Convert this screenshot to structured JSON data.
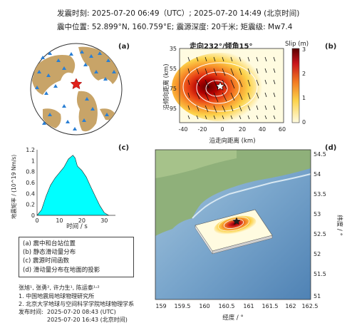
{
  "header": {
    "line1": "发震时刻: 2025-07-20 06:49（UTC）;   2025-07-20  14:49 (北京时间)",
    "line2": "震中位置: 52.899°N,  160.759°E;   震源深度: 20千米;  矩震级: Mw7.4"
  },
  "panels": {
    "a": "(a)",
    "b": "(b)",
    "c": "(c)",
    "d": "(d)"
  },
  "panel_b": {
    "title": "走向232°/倾角15°",
    "colorbar_title": "Slip (m)",
    "colorbar_ticks": [
      "0",
      "1",
      "2",
      "3"
    ],
    "xlabel": "沿走向距离 (km)",
    "ylabel": "沿倾向距离 (km)",
    "xticks": [
      "-40",
      "-20",
      "0",
      "20",
      "40",
      "60"
    ],
    "yticks": [
      "35",
      "55",
      "75",
      "95"
    ]
  },
  "chart_data": [
    {
      "type": "area",
      "title": "",
      "xlabel": "时间 / s",
      "ylabel": "地震矩率 / (10^19 Nm/s)",
      "xlim": [
        0,
        35
      ],
      "ylim": [
        0,
        1.2
      ],
      "xticks": [
        "0",
        "10",
        "20",
        "30"
      ],
      "yticks": [
        "0",
        "0.2",
        "0.4",
        "0.6",
        "0.8",
        "1",
        "1.2"
      ],
      "x": [
        0,
        2,
        4,
        6,
        8,
        10,
        12,
        14,
        16,
        17,
        18,
        20,
        22,
        24,
        26,
        28,
        30,
        32
      ],
      "y": [
        0,
        0.1,
        0.35,
        0.55,
        0.68,
        0.78,
        0.88,
        1.03,
        1.1,
        1.05,
        0.9,
        0.82,
        0.7,
        0.52,
        0.35,
        0.18,
        0.05,
        0
      ],
      "fill_color": "#00ffff"
    }
  ],
  "panel_d": {
    "xlabel": "经度 / °",
    "ylabel": "纬度 / °",
    "xticks": [
      "159",
      "159.5",
      "160",
      "160.5",
      "161",
      "161.5",
      "162",
      "162.5"
    ],
    "yticks": [
      "54.5",
      "54",
      "53.5",
      "53",
      "52.5",
      "52",
      "51.5",
      "51"
    ]
  },
  "legend": {
    "items": [
      "(a) 震中和台站位置",
      "(b) 静态滑动量分布",
      "(c) 震源时间函数",
      "(d) 滑动量分布在地面的投影"
    ]
  },
  "footer": {
    "authors": "张旭¹, 张勇², 许力生¹, 陈运泰¹˒²",
    "affil1": "1. 中国地震局地球物理研究所",
    "affil2": "2. 北京大学地球与空间科学学院地球物理学系",
    "release_label": "发布时间:",
    "release_utc": "2025-07-20  08:43 (UTC)",
    "release_bj": "2025-07-20  16:43 (北京时间)"
  },
  "colors": {
    "accent_star": "#e0201b",
    "station": "#2a7fd4",
    "land": "#c8a468",
    "ocean": "#6b9fc8"
  }
}
